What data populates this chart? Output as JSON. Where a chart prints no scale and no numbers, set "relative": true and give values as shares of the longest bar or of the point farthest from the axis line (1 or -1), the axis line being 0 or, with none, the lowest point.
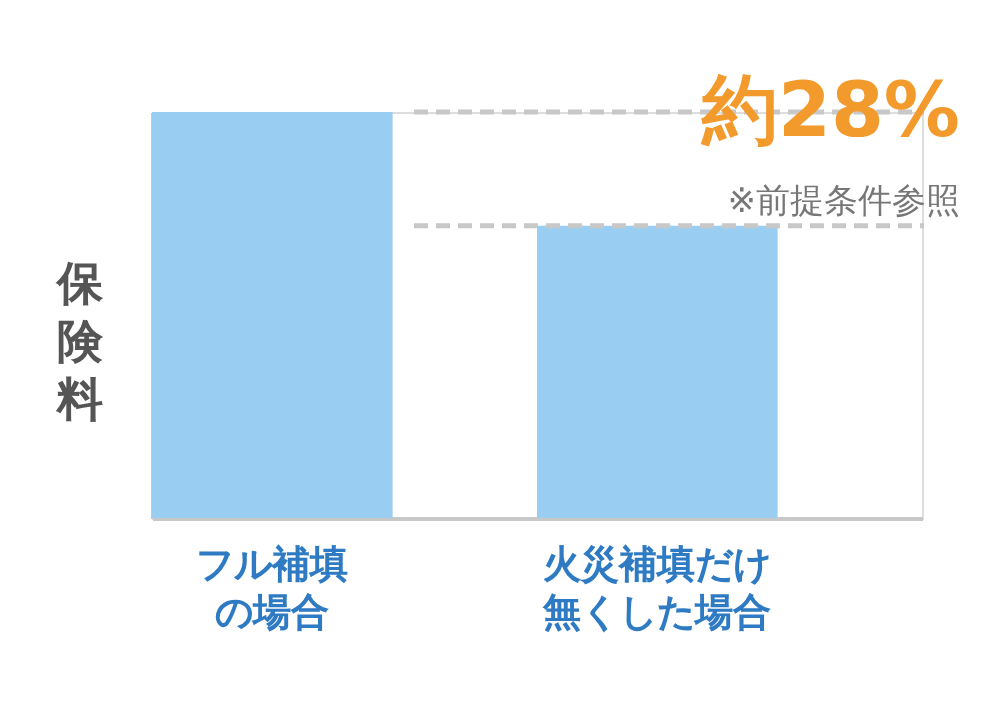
{
  "chart_data": {
    "type": "bar",
    "relative": true,
    "categories": [
      "フル補填の場合",
      "火災補填だけ無くした場合"
    ],
    "values": [
      1,
      0.72
    ],
    "color": "#99cef2",
    "ylabel": "保険料",
    "annotations": [
      "約28%",
      "※前提条件参照"
    ],
    "ref_lines": [
      {
        "axis": "y",
        "value": 1,
        "label": null,
        "color": "#c8c8c8",
        "line_style": "dashed"
      },
      {
        "axis": "y",
        "value": 0.72,
        "label": null,
        "color": "#c8c8c8",
        "line_style": "dashed"
      }
    ],
    "grid": false
  }
}
